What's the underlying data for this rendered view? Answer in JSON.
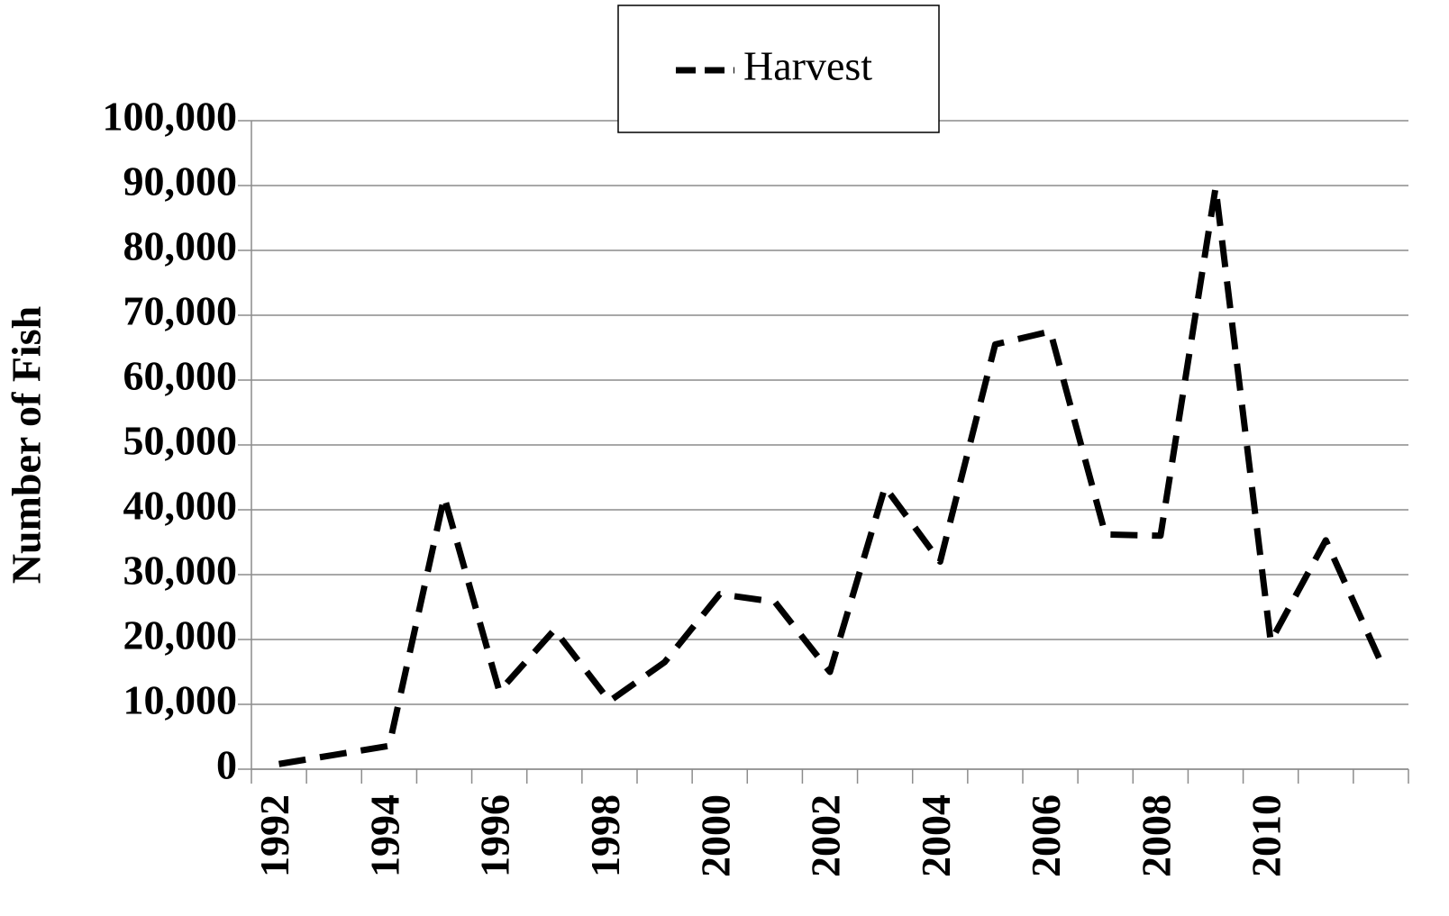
{
  "chart_data": {
    "type": "line",
    "y_label": "Number of Fish",
    "categories": [
      "1992",
      null,
      "1994",
      null,
      "1996",
      null,
      "1998",
      null,
      "2000",
      null,
      "2002",
      null,
      "2004",
      null,
      "2006",
      null,
      "2008",
      null,
      "2010",
      null,
      null
    ],
    "series": [
      {
        "name": "Harvest",
        "color": "#000000",
        "dashed": true,
        "values": [
          800,
          2200,
          3600,
          42000,
          12000,
          21500,
          10500,
          16500,
          27000,
          25800,
          15000,
          43500,
          32000,
          65500,
          67500,
          36200,
          36000,
          89700,
          19700,
          35300,
          16500
        ]
      }
    ],
    "ylim": [
      0,
      100000
    ],
    "yticks": [
      0,
      {
        "value": 10000,
        "label": "10,000"
      },
      {
        "value": 20000,
        "label": "20,000"
      },
      {
        "value": 30000,
        "label": "30,000"
      },
      {
        "value": 40000,
        "label": "40,000"
      },
      {
        "value": 50000,
        "label": "50,000"
      },
      {
        "value": 60000,
        "label": "60,000"
      },
      {
        "value": 70000,
        "label": "70,000"
      },
      {
        "value": 80000,
        "label": "80,000"
      },
      {
        "value": 90000,
        "label": "90,000"
      },
      {
        "value": 100000,
        "label": "100,000"
      }
    ],
    "grid": true,
    "legend": "top"
  }
}
